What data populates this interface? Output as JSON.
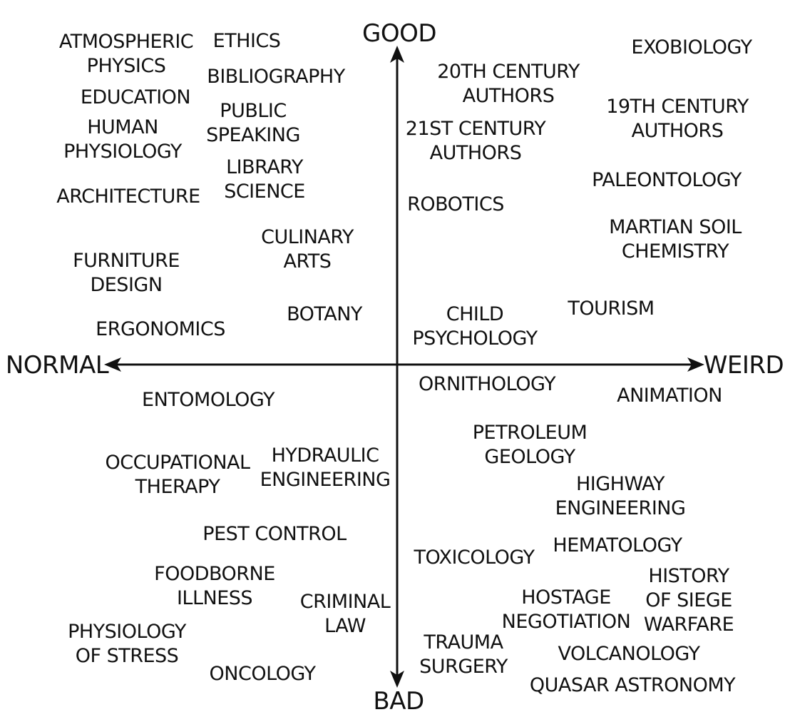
{
  "axes": {
    "top": "GOOD",
    "bottom": "BAD",
    "left": "NORMAL",
    "right": "WEIRD"
  },
  "fields": {
    "atmospheric_physics": "ATMOSPHERIC\nPHYSICS",
    "ethics": "ETHICS",
    "bibliography": "BIBLIOGRAPHY",
    "education": "EDUCATION",
    "human_physiology": "HUMAN\nPHYSIOLOGY",
    "public_speaking": "PUBLIC\nSPEAKING",
    "library_science": "LIBRARY\nSCIENCE",
    "architecture": "ARCHITECTURE",
    "culinary_arts": "CULINARY\nARTS",
    "furniture_design": "FURNITURE\nDESIGN",
    "ergonomics": "ERGONOMICS",
    "botany": "BOTANY",
    "century_20_authors": "20TH CENTURY\nAUTHORS",
    "century_21_authors": "21ST CENTURY\nAUTHORS",
    "robotics": "ROBOTICS",
    "child_psychology": "CHILD\nPSYCHOLOGY",
    "exobiology": "EXOBIOLOGY",
    "century_19_authors": "19TH CENTURY\nAUTHORS",
    "paleontology": "PALEONTOLOGY",
    "martian_soil_chemistry": "MARTIAN SOIL\nCHEMISTRY",
    "tourism": "TOURISM",
    "entomology": "ENTOMOLOGY",
    "occupational_therapy": "OCCUPATIONAL\nTHERAPY",
    "hydraulic_engineering": "HYDRAULIC\nENGINEERING",
    "pest_control": "PEST CONTROL",
    "foodborne_illness": "FOODBORNE\nILLNESS",
    "criminal_law": "CRIMINAL\nLAW",
    "physiology_of_stress": "PHYSIOLOGY\nOF STRESS",
    "oncology": "ONCOLOGY",
    "ornithology": "ORNITHOLOGY",
    "animation": "ANIMATION",
    "petroleum_geology": "PETROLEUM\nGEOLOGY",
    "highway_engineering": "HIGHWAY\nENGINEERING",
    "hematology": "HEMATOLOGY",
    "toxicology": "TOXICOLOGY",
    "history_of_siege_warfare": "HISTORY\nOF SIEGE\nWARFARE",
    "hostage_negotiation": "HOSTAGE\nNEGOTIATION",
    "trauma_surgery": "TRAUMA\nSURGERY",
    "volcanology": "VOLCANOLOGY",
    "quasar_astronomy": "QUASAR ASTRONOMY"
  }
}
